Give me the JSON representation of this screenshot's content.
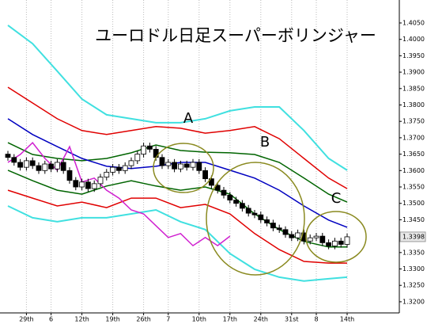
{
  "chart_data": {
    "type": "candlestick",
    "title": "ユーロドル日足スーパーボリンジャー",
    "categories": [
      null,
      null,
      null,
      "29th",
      null,
      null,
      null,
      "6",
      null,
      null,
      null,
      null,
      "12th",
      null,
      null,
      null,
      null,
      "19th",
      null,
      null,
      null,
      null,
      "26th",
      null,
      null,
      null,
      "7",
      null,
      null,
      null,
      null,
      "10th",
      null,
      null,
      null,
      null,
      "17th",
      null,
      null,
      null,
      null,
      "24th",
      null,
      null,
      null,
      null,
      "31st",
      null,
      null,
      null,
      "8",
      null,
      null,
      null,
      null,
      "14th"
    ],
    "open": [
      1.365,
      1.364,
      1.3625,
      1.361,
      1.363,
      1.3615,
      1.36,
      1.362,
      1.3605,
      1.3625,
      1.36,
      1.357,
      1.355,
      1.3565,
      1.3545,
      1.356,
      1.358,
      1.3595,
      1.361,
      1.36,
      1.3615,
      1.363,
      1.365,
      1.3675,
      1.3665,
      1.364,
      1.3615,
      1.3625,
      1.3605,
      1.362,
      1.361,
      1.3625,
      1.36,
      1.3575,
      1.3555,
      1.354,
      1.3525,
      1.351,
      1.35,
      1.3485,
      1.347,
      1.3465,
      1.345,
      1.344,
      1.3425,
      1.342,
      1.3405,
      1.3395,
      1.341,
      1.3385,
      1.3395,
      1.34,
      1.338,
      1.337,
      1.3385,
      1.3375
    ],
    "high": [
      1.366,
      1.365,
      1.3635,
      1.364,
      1.364,
      1.3625,
      1.363,
      1.363,
      1.3635,
      1.3635,
      1.361,
      1.358,
      1.3575,
      1.3575,
      1.357,
      1.359,
      1.3605,
      1.362,
      1.362,
      1.3625,
      1.364,
      1.366,
      1.3685,
      1.3685,
      1.3675,
      1.365,
      1.3635,
      1.3635,
      1.363,
      1.363,
      1.3635,
      1.3635,
      1.361,
      1.3585,
      1.3565,
      1.355,
      1.3535,
      1.352,
      1.351,
      1.3495,
      1.348,
      1.3475,
      1.346,
      1.345,
      1.3435,
      1.343,
      1.3415,
      1.342,
      1.342,
      1.3405,
      1.341,
      1.341,
      1.339,
      1.3395,
      1.3395,
      1.3408
    ],
    "low": [
      1.363,
      1.3615,
      1.36,
      1.36,
      1.3605,
      1.359,
      1.359,
      1.3595,
      1.3595,
      1.359,
      1.356,
      1.354,
      1.354,
      1.3535,
      1.3535,
      1.355,
      1.357,
      1.3585,
      1.359,
      1.359,
      1.3605,
      1.362,
      1.364,
      1.3655,
      1.363,
      1.3605,
      1.3605,
      1.3595,
      1.3595,
      1.36,
      1.36,
      1.359,
      1.3565,
      1.3545,
      1.353,
      1.3515,
      1.35,
      1.349,
      1.3475,
      1.346,
      1.3455,
      1.344,
      1.343,
      1.3415,
      1.341,
      1.3395,
      1.3385,
      1.3385,
      1.3375,
      1.3375,
      1.3385,
      1.337,
      1.336,
      1.336,
      1.3365,
      1.3365
    ],
    "close": [
      1.364,
      1.3625,
      1.361,
      1.363,
      1.3615,
      1.36,
      1.362,
      1.3605,
      1.3625,
      1.36,
      1.357,
      1.355,
      1.3565,
      1.3545,
      1.356,
      1.358,
      1.3595,
      1.361,
      1.36,
      1.3615,
      1.363,
      1.365,
      1.3675,
      1.3665,
      1.364,
      1.3615,
      1.3625,
      1.3605,
      1.362,
      1.361,
      1.3625,
      1.36,
      1.3575,
      1.3555,
      1.354,
      1.3525,
      1.351,
      1.35,
      1.3485,
      1.347,
      1.3465,
      1.345,
      1.344,
      1.3425,
      1.342,
      1.3405,
      1.3395,
      1.341,
      1.3385,
      1.3395,
      1.34,
      1.338,
      1.337,
      1.3385,
      1.3375,
      1.3398
    ],
    "up_color": "#ffffff",
    "down_color": "#000000",
    "lines": [
      {
        "color": "#40e0e0",
        "x": [
          0,
          4,
          8,
          12,
          16,
          20,
          24,
          28,
          32,
          36,
          40,
          44,
          48,
          52,
          55
        ],
        "values": [
          1.4043,
          1.3987,
          1.3903,
          1.3818,
          1.377,
          1.3758,
          1.3746,
          1.3746,
          1.3758,
          1.3782,
          1.3794,
          1.3794,
          1.3722,
          1.3637,
          1.3601
        ]
      },
      {
        "color": "#e00000",
        "x": [
          0,
          4,
          8,
          12,
          16,
          20,
          24,
          28,
          32,
          36,
          40,
          44,
          48,
          52,
          55
        ],
        "values": [
          1.3854,
          1.3806,
          1.3758,
          1.3722,
          1.371,
          1.3722,
          1.3734,
          1.3729,
          1.3714,
          1.3722,
          1.3734,
          1.3697,
          1.3637,
          1.3577,
          1.3545
        ]
      },
      {
        "color": "#006400",
        "x": [
          0,
          4,
          8,
          12,
          16,
          20,
          24,
          28,
          32,
          36,
          40,
          44,
          48,
          52,
          55
        ],
        "values": [
          1.3685,
          1.3649,
          1.3637,
          1.363,
          1.3637,
          1.3654,
          1.3678,
          1.3661,
          1.3656,
          1.3654,
          1.3649,
          1.3625,
          1.3577,
          1.3528,
          1.3504
        ]
      },
      {
        "color": "#0000c0",
        "x": [
          0,
          4,
          8,
          12,
          16,
          20,
          24,
          28,
          32,
          36,
          40,
          44,
          48,
          52,
          55
        ],
        "values": [
          1.3758,
          1.371,
          1.3673,
          1.3637,
          1.3613,
          1.3606,
          1.3613,
          1.3625,
          1.3625,
          1.3601,
          1.3577,
          1.354,
          1.3492,
          1.3449,
          1.3427
        ]
      },
      {
        "color": "#006400",
        "x": [
          0,
          4,
          8,
          12,
          16,
          20,
          24,
          28,
          32,
          36,
          40,
          44,
          48,
          52,
          55
        ],
        "values": [
          1.3601,
          1.3569,
          1.354,
          1.3528,
          1.3553,
          1.3569,
          1.3553,
          1.354,
          1.355,
          1.3528,
          1.3468,
          1.342,
          1.3384,
          1.3367,
          1.3367
        ]
      },
      {
        "color": "#e00000",
        "x": [
          0,
          4,
          8,
          12,
          16,
          20,
          24,
          28,
          32,
          36,
          40,
          44,
          48,
          52,
          55
        ],
        "values": [
          1.354,
          1.3516,
          1.3492,
          1.3504,
          1.3487,
          1.3516,
          1.3516,
          1.3487,
          1.3497,
          1.3468,
          1.3408,
          1.3359,
          1.3323,
          1.3318,
          1.3318
        ]
      },
      {
        "color": "#40e0e0",
        "x": [
          0,
          4,
          8,
          12,
          16,
          20,
          24,
          28,
          32,
          36,
          40,
          44,
          48,
          52,
          55
        ],
        "values": [
          1.3492,
          1.3456,
          1.3444,
          1.3456,
          1.3456,
          1.3468,
          1.348,
          1.3444,
          1.342,
          1.3347,
          1.3299,
          1.3275,
          1.3263,
          1.327,
          1.3275
        ]
      },
      {
        "color": "#d020d0",
        "x": [
          0,
          2,
          4,
          6,
          8,
          10,
          12,
          14,
          16,
          18,
          20,
          22,
          24,
          26,
          28,
          30,
          32,
          34,
          36
        ],
        "values": [
          1.3625,
          1.3649,
          1.3685,
          1.3637,
          1.3601,
          1.3673,
          1.3565,
          1.3577,
          1.354,
          1.3516,
          1.348,
          1.3468,
          1.3432,
          1.3396,
          1.3408,
          1.3371,
          1.3396,
          1.3371,
          1.34
        ]
      }
    ],
    "annotations": [
      "A",
      "B",
      "C"
    ],
    "ylim": [
      1.3166,
      1.412
    ],
    "yticks": [
      {
        "value": 1.405,
        "label": "1.4050"
      },
      {
        "value": 1.4,
        "label": "1.4000"
      },
      {
        "value": 1.395,
        "label": "1.3950"
      },
      {
        "value": 1.39,
        "label": "1.3900"
      },
      {
        "value": 1.385,
        "label": "1.3850"
      },
      {
        "value": 1.38,
        "label": "1.3800"
      },
      {
        "value": 1.375,
        "label": "1.3750"
      },
      {
        "value": 1.37,
        "label": "1.3700"
      },
      {
        "value": 1.365,
        "label": "1.3650"
      },
      {
        "value": 1.36,
        "label": "1.3600"
      },
      {
        "value": 1.355,
        "label": "1.3550"
      },
      {
        "value": 1.35,
        "label": "1.3500"
      },
      {
        "value": 1.345,
        "label": "1.3450"
      },
      {
        "value": 1.34,
        "label": "1.3400"
      },
      {
        "value": 1.335,
        "label": "1.3350"
      },
      {
        "value": 1.33,
        "label": "1.3300"
      },
      {
        "value": 1.325,
        "label": "1.3250"
      },
      {
        "value": 1.32,
        "label": "1.3200"
      }
    ],
    "grid": true
  }
}
